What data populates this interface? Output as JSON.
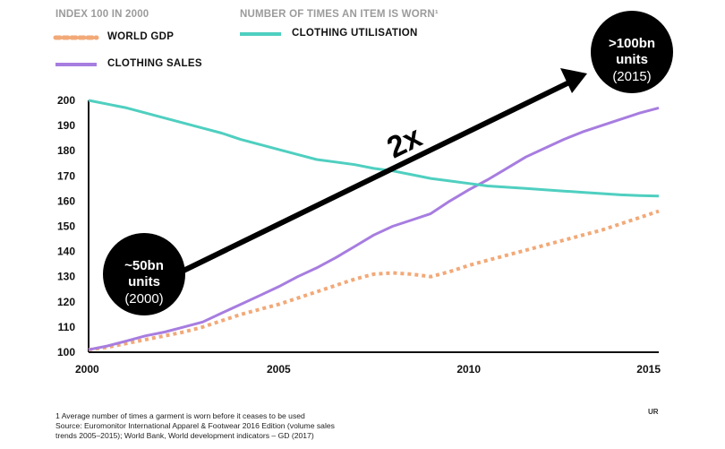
{
  "chart_data": {
    "type": "line",
    "header_left": "INDEX 100 IN 2000",
    "header_right": "NUMBER OF TIMES AN ITEM IS WORN¹",
    "x_ticks": [
      "2000",
      "2005",
      "2010",
      "2015"
    ],
    "y_ticks": [
      "100",
      "110",
      "120",
      "130",
      "140",
      "150",
      "160",
      "170",
      "180",
      "190",
      "200"
    ],
    "xlim": [
      2000,
      2015
    ],
    "ylim": [
      100,
      200
    ],
    "grid": false,
    "series": [
      {
        "name": "WORLD GDP",
        "color": "#f2a978",
        "style": "dotted",
        "x": [
          2000,
          2000.5,
          2001,
          2001.5,
          2002,
          2002.5,
          2003,
          2003.5,
          2004,
          2004.5,
          2005,
          2005.5,
          2006,
          2006.5,
          2007,
          2007.5,
          2008,
          2008.5,
          2009,
          2009.5,
          2010,
          2010.5,
          2011,
          2011.5,
          2012,
          2012.5,
          2013,
          2013.5,
          2014,
          2014.5,
          2015
        ],
        "y": [
          101,
          102,
          103.5,
          105,
          106.5,
          108,
          110,
          112.5,
          115,
          117,
          119,
          121.5,
          124,
          126.5,
          129,
          131,
          131.5,
          131,
          130,
          132,
          134.5,
          136.5,
          138.5,
          140.5,
          142.5,
          144.5,
          146.5,
          148.5,
          151,
          153.5,
          156
        ]
      },
      {
        "name": "CLOTHING SALES",
        "color": "#a77de0",
        "style": "solid",
        "x": [
          2000,
          2000.5,
          2001,
          2001.5,
          2002,
          2002.5,
          2003,
          2003.5,
          2004,
          2004.5,
          2005,
          2005.5,
          2006,
          2006.5,
          2007,
          2007.5,
          2008,
          2008.5,
          2009,
          2009.5,
          2010,
          2010.5,
          2011,
          2011.5,
          2012,
          2012.5,
          2013,
          2013.5,
          2014,
          2014.5,
          2015
        ],
        "y": [
          101,
          102.5,
          104.5,
          106.5,
          108,
          110,
          112,
          115.5,
          119,
          122.5,
          126,
          130,
          133.5,
          137.5,
          142,
          146.5,
          150,
          152.5,
          155,
          160,
          164.5,
          168.5,
          173,
          177.5,
          181,
          184.5,
          187.5,
          190,
          192.5,
          195,
          197
        ]
      },
      {
        "name": "CLOTHING UTILISATION",
        "color": "#4fcfc0",
        "style": "solid",
        "x": [
          2000,
          2000.5,
          2001,
          2001.5,
          2002,
          2002.5,
          2003,
          2003.5,
          2004,
          2004.5,
          2005,
          2005.5,
          2006,
          2006.5,
          2007,
          2007.5,
          2008,
          2008.5,
          2009,
          2009.5,
          2010,
          2010.5,
          2011,
          2011.5,
          2012,
          2012.5,
          2013,
          2013.5,
          2014,
          2014.5,
          2015
        ],
        "y": [
          200,
          198.5,
          197,
          195,
          193,
          191,
          189,
          187,
          184.5,
          182.5,
          180.5,
          178.5,
          176.5,
          175.5,
          174.5,
          173,
          172,
          170.5,
          169,
          168,
          167,
          166,
          165.5,
          165,
          164.5,
          164,
          163.5,
          163,
          162.5,
          162.2,
          162
        ]
      }
    ],
    "annotations": {
      "arrow_label": "2x",
      "start_bubble": {
        "year": 2000,
        "line1": "~50bn",
        "line2": "units",
        "line3": "(2000)"
      },
      "end_bubble": {
        "year": 2015,
        "line1": ">100bn",
        "line2": "units",
        "line3": "(2015)"
      }
    }
  },
  "footnote": {
    "line1": "1 Average number of times a garment is worn before it ceases to be used",
    "line2": "Source: Euromonitor International Apparel & Footwear 2016 Edition (volume sales",
    "line3": "trends 2005–2015); World Bank, World development indicators – GD (2017)"
  },
  "brand_mark": "UR"
}
